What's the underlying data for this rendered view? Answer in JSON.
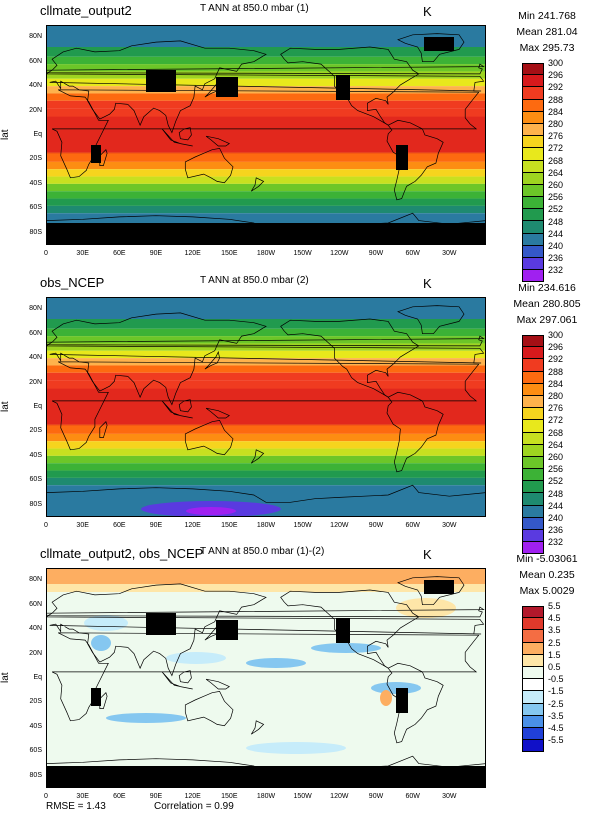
{
  "ylabel": "lat",
  "lat_ticks": [
    "80N",
    "60N",
    "40N",
    "20N",
    "Eq",
    "20S",
    "40S",
    "60S",
    "80S"
  ],
  "lon_ticks": [
    "0",
    "30E",
    "60E",
    "90E",
    "120E",
    "150E",
    "180W",
    "150W",
    "120W",
    "90W",
    "60W",
    "30W"
  ],
  "panels": [
    {
      "title": "cllmate_output2",
      "var": "T ANN at 850.0 mbar (1)",
      "units": "K",
      "min": "Min 241.768",
      "mean": "Mean 281.04",
      "max": "Max 295.73",
      "levels": [
        "300",
        "296",
        "292",
        "288",
        "284",
        "280",
        "276",
        "272",
        "268",
        "264",
        "260",
        "256",
        "252",
        "248",
        "244",
        "240",
        "236",
        "232"
      ],
      "colors": [
        "#a50f15",
        "#d7191c",
        "#f03b20",
        "#fd6a10",
        "#fd8d12",
        "#feb24c",
        "#f6d41e",
        "#e8e81c",
        "#c7e020",
        "#9ed420",
        "#6cc628",
        "#3cb236",
        "#219a4e",
        "#1e8a70",
        "#2a7aa0",
        "#3458c8",
        "#5a3ae0",
        "#a020f0"
      ]
    },
    {
      "title": "obs_NCEP",
      "var": "T ANN at 850.0 mbar (2)",
      "units": "K",
      "min": "Min 234.616",
      "mean": "Mean 280.805",
      "max": "Max 297.061",
      "levels": [
        "300",
        "296",
        "292",
        "288",
        "284",
        "280",
        "276",
        "272",
        "268",
        "264",
        "260",
        "256",
        "252",
        "248",
        "244",
        "240",
        "236",
        "232"
      ],
      "colors": [
        "#a50f15",
        "#d7191c",
        "#f03b20",
        "#fd6a10",
        "#fd8d12",
        "#feb24c",
        "#f6d41e",
        "#e8e81c",
        "#c7e020",
        "#9ed420",
        "#6cc628",
        "#3cb236",
        "#219a4e",
        "#1e8a70",
        "#2a7aa0",
        "#3458c8",
        "#5a3ae0",
        "#a020f0"
      ]
    },
    {
      "title": "cllmate_output2, obs_NCEP",
      "var": "T ANN at 850.0 mbar (1)-(2)",
      "units": "K",
      "min": "Min -5.03061",
      "mean": "Mean 0.235",
      "max": "Max 5.0029",
      "levels": [
        "5.5",
        "4.5",
        "3.5",
        "2.5",
        "1.5",
        "0.5",
        "-0.5",
        "-1.5",
        "-2.5",
        "-3.5",
        "-4.5",
        "-5.5"
      ],
      "colors": [
        "#b2182b",
        "#e0392b",
        "#f46d43",
        "#fdae61",
        "#fee6a8",
        "#eefaee",
        "#ffffff",
        "#c6ecfa",
        "#85c7f0",
        "#4a90e8",
        "#2040d8",
        "#1010c8"
      ]
    }
  ],
  "footer": {
    "rmse": "RMSE = 1.43",
    "correlation": "Correlation = 0.99"
  }
}
